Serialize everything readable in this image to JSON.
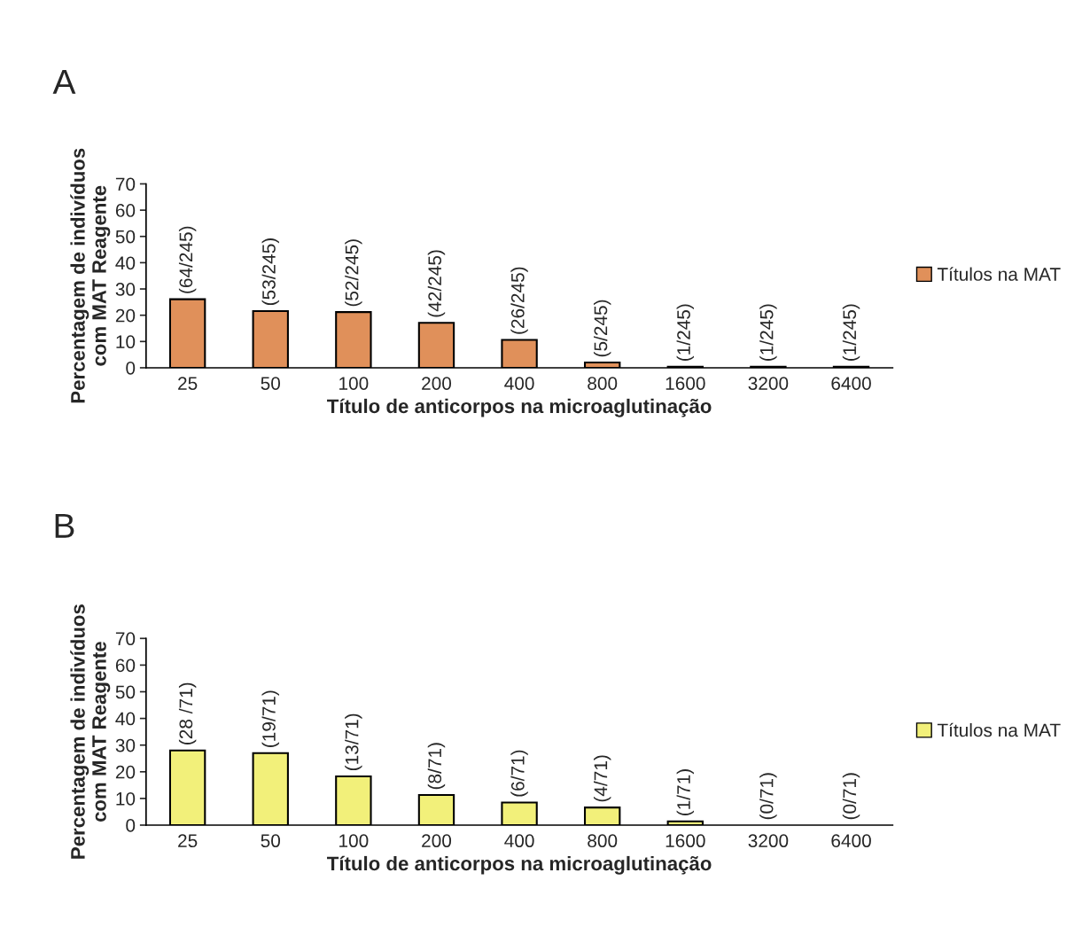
{
  "chart_data": [
    {
      "type": "bar",
      "title": "A",
      "xlabel": "Título de anticorpos na microaglutinação",
      "ylabel": "Percentagem de indivíduos\ncom MAT Reagente",
      "categories": [
        "25",
        "50",
        "100",
        "200",
        "400",
        "800",
        "1600",
        "3200",
        "6400"
      ],
      "series": [
        {
          "name": "Títulos na MAT",
          "color": "#e0905a",
          "values": [
            26.1,
            21.6,
            21.2,
            17.1,
            10.6,
            2.0,
            0.4,
            0.4,
            0.4
          ],
          "value_labels": [
            "(64/245)",
            "(53/245)",
            "(52/245)",
            "(42/245)",
            "(26/245)",
            "(5/245)",
            "(1/245)",
            "(1/245)",
            "(1/245)"
          ]
        }
      ],
      "ylim": [
        0,
        70
      ],
      "yticks": [
        0,
        10,
        20,
        30,
        40,
        50,
        60,
        70
      ],
      "grid": false,
      "legend": "right"
    },
    {
      "type": "bar",
      "title": "B",
      "xlabel": "Título de anticorpos na microaglutinação",
      "ylabel": "Percentagem de indivíduos\ncom MAT Reagente",
      "categories": [
        "25",
        "50",
        "100",
        "200",
        "400",
        "800",
        "1600",
        "3200",
        "6400"
      ],
      "series": [
        {
          "name": "Títulos na MAT",
          "color": "#f2f07a",
          "values": [
            28,
            27,
            18.3,
            11.3,
            8.5,
            6.6,
            1.4,
            0,
            0
          ],
          "value_labels": [
            "(28 /71)",
            "(19/71)",
            "(13/71)",
            "(8/71)",
            "(6/71)",
            "(4/71)",
            "(1/71)",
            "(0/71)",
            "(0/71)"
          ]
        }
      ],
      "ylim": [
        0,
        70
      ],
      "yticks": [
        0,
        10,
        20,
        30,
        40,
        50,
        60,
        70
      ],
      "grid": false,
      "legend": "right"
    }
  ]
}
